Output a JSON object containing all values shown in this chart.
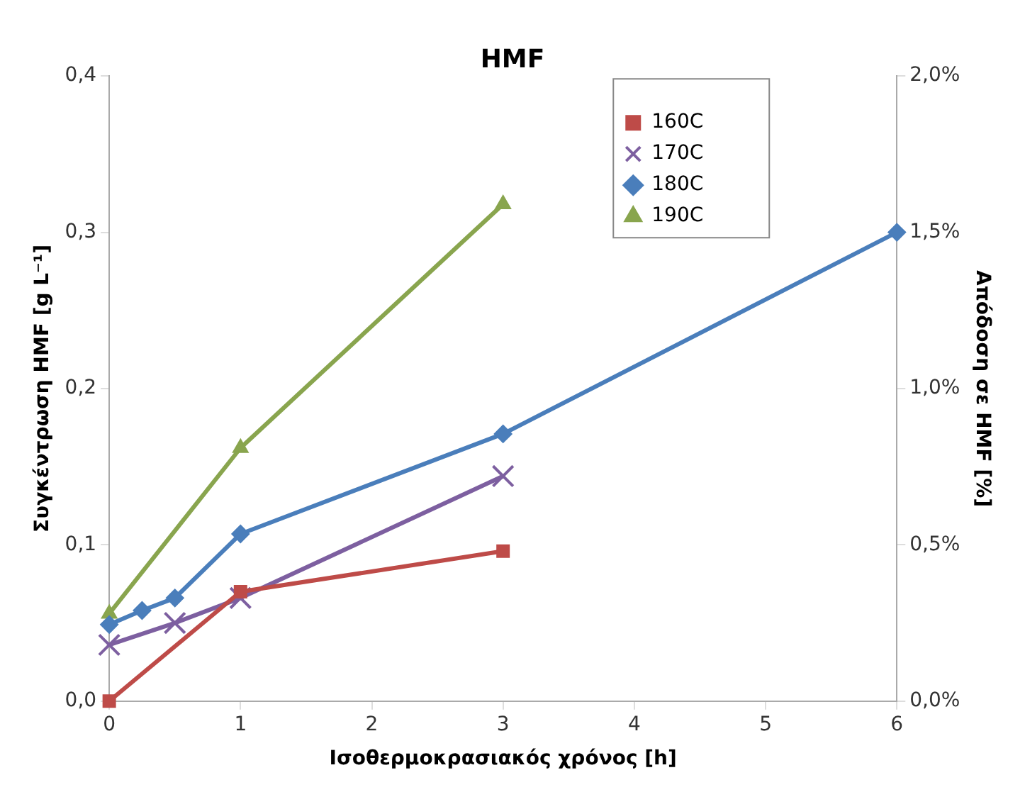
{
  "chart_data": {
    "type": "line",
    "title": "HMF",
    "xlabel": "Ισοθερμοκρασιακός χρόνος [h]",
    "ylabel": "Συγκέντρωση HMF [g L⁻¹]",
    "y2label": "Απόδοση σε HMF [%]",
    "xlim": [
      0,
      6
    ],
    "xticks": [
      0,
      1,
      2,
      3,
      4,
      5,
      6
    ],
    "ylim": [
      0,
      0.4
    ],
    "yticks": [
      {
        "value": 0,
        "label": "0,0"
      },
      {
        "value": 0.1,
        "label": "0,1"
      },
      {
        "value": 0.2,
        "label": "0,2"
      },
      {
        "value": 0.3,
        "label": "0,3"
      },
      {
        "value": 0.4,
        "label": "0,4"
      }
    ],
    "y2lim": [
      0,
      2
    ],
    "y2ticks": [
      {
        "value": 0,
        "label": "0,0%"
      },
      {
        "value": 0.5,
        "label": "0,5%"
      },
      {
        "value": 1,
        "label": "1,0%"
      },
      {
        "value": 1.5,
        "label": "1,5%"
      },
      {
        "value": 2,
        "label": "2,0%"
      }
    ],
    "grid": false,
    "legend": "top right",
    "line_style": "solid",
    "series": [
      {
        "name": "160C",
        "color": "#be4b48",
        "marker": "square",
        "x": [
          0,
          1,
          3
        ],
        "values": [
          0,
          0.07,
          0.096
        ]
      },
      {
        "name": "170C",
        "color": "#7d5fa0",
        "marker": "cross",
        "x": [
          0,
          0.5,
          1,
          3
        ],
        "values": [
          0.036,
          0.05,
          0.066,
          0.144
        ]
      },
      {
        "name": "180C",
        "color": "#4a7ebb",
        "marker": "diamond",
        "x": [
          0,
          0.25,
          0.5,
          1,
          3,
          6
        ],
        "values": [
          0.049,
          0.058,
          0.066,
          0.107,
          0.171,
          0.3
        ]
      },
      {
        "name": "190C",
        "color": "#89a54e",
        "marker": "triangle",
        "x": [
          0,
          1,
          3
        ],
        "values": [
          0.056,
          0.162,
          0.318
        ]
      }
    ]
  }
}
